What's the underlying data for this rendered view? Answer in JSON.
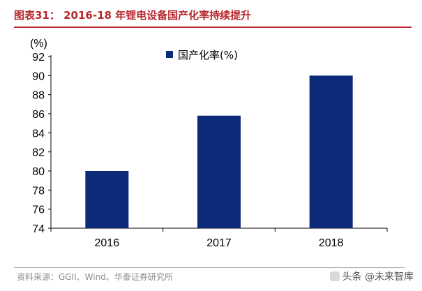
{
  "header": {
    "title": "图表31：   2016-18 年锂电设备国产化率持续提升"
  },
  "chart_data": {
    "type": "bar",
    "categories": [
      "2016",
      "2017",
      "2018"
    ],
    "series": [
      {
        "name": "国产化率(%)",
        "values": [
          80,
          85.8,
          90
        ]
      }
    ],
    "ylabel": "(%)",
    "ylim": [
      74,
      92
    ],
    "yticks": [
      74,
      76,
      78,
      80,
      82,
      84,
      86,
      88,
      90,
      92
    ],
    "legend_position": "top-center",
    "grid": false,
    "bar_color": "#0c2a7a"
  },
  "footer": {
    "source": "资料来源：GGII、Wind、华泰证券研究所"
  },
  "watermark": {
    "text": "头条 @未来智库"
  }
}
